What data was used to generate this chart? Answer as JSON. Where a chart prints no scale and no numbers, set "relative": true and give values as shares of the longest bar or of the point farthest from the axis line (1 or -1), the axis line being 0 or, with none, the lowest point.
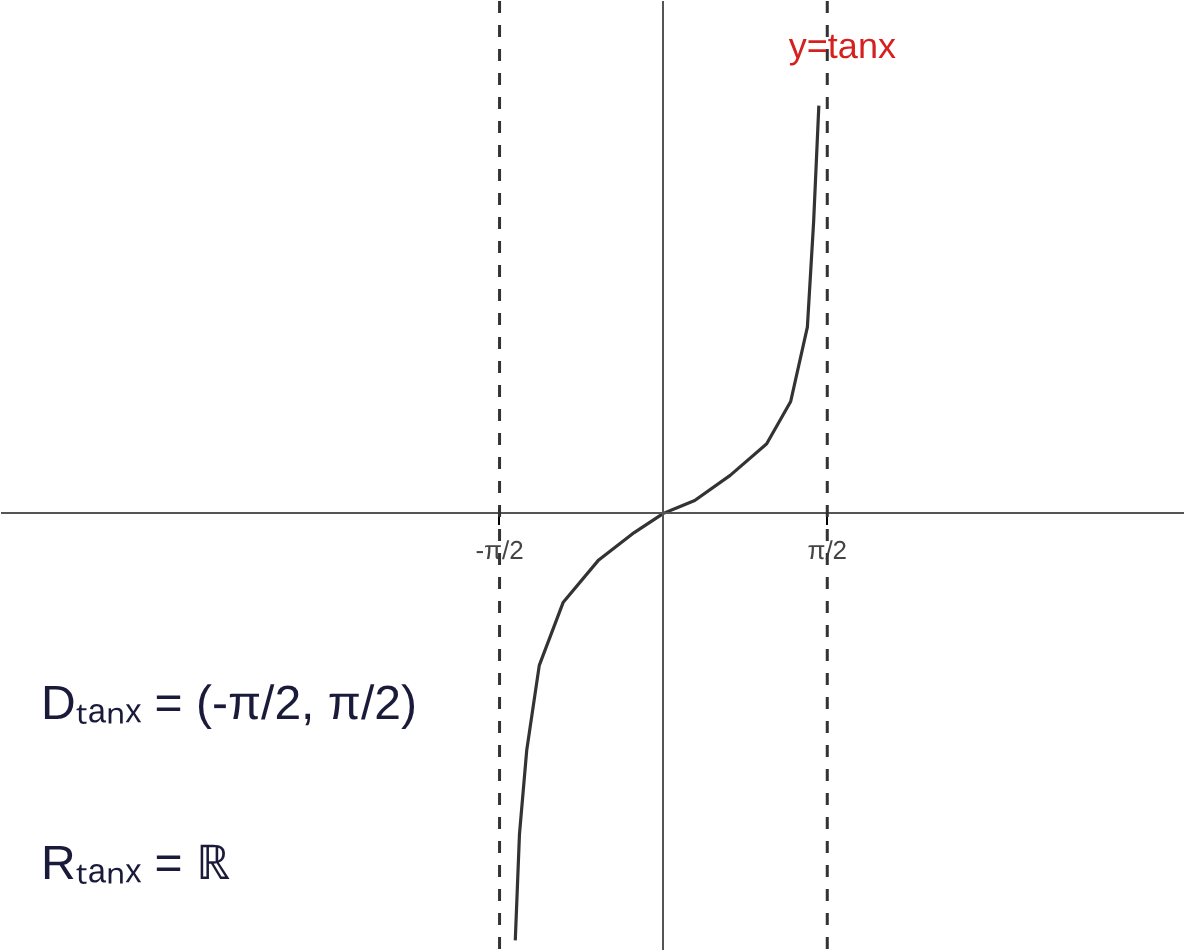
{
  "chart_data": {
    "type": "line",
    "relative": true,
    "x": [
      -1.42,
      -1.38,
      -1.31,
      -1.19,
      -0.96,
      -0.62,
      -0.28,
      0,
      0.3,
      0.64,
      0.99,
      1.22,
      1.38,
      1.44,
      1.49
    ],
    "series": [
      {
        "color": "#333333",
        "values": [
          -1.0,
          -0.752,
          -0.554,
          -0.356,
          -0.208,
          -0.109,
          -0.045,
          0,
          0.03,
          0.089,
          0.163,
          0.262,
          0.436,
          0.683,
          0.955
        ]
      }
    ],
    "xlim": [
      -6.35,
      5.0
    ],
    "xticks": [
      {
        "value": -1.5708,
        "label": "-π/2"
      },
      {
        "value": 1.5708,
        "label": "π/2"
      }
    ],
    "tick_labels": "x",
    "grid": false,
    "marker": "none",
    "line_style": "solid",
    "ref_lines": [
      {
        "axis": "x",
        "value": -1.5708,
        "line_style": "dashed",
        "color": "#333333"
      },
      {
        "axis": "x",
        "value": 1.5708,
        "line_style": "dashed",
        "color": "#333333"
      }
    ],
    "annotations": [
      {
        "text": "y=tanx",
        "x": 1.49,
        "y": 0.955
      },
      "Dₜₐₙₓ = (-π/2, π/2)",
      "Rₜₐₙₓ = ℝ"
    ]
  }
}
